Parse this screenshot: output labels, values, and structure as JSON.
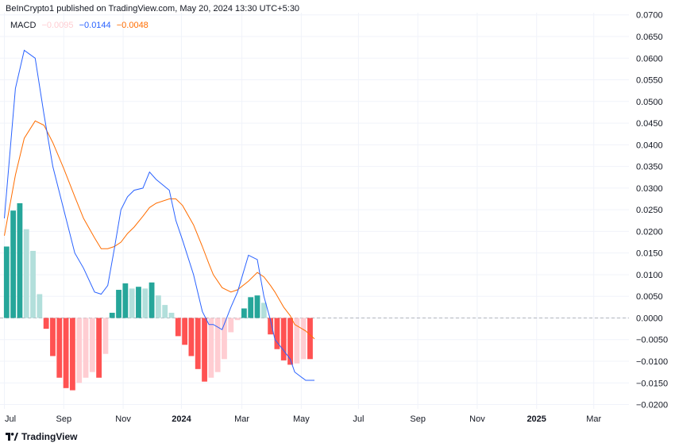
{
  "header": {
    "publisher": "BeInCrypto1 published on TradingView.com, May 20, 2024 13:30 UTC+5:30"
  },
  "legend": {
    "name": "MACD",
    "histogram_value": "−0.0095",
    "macd_value": "−0.0144",
    "signal_value": "−0.0048"
  },
  "footer": {
    "brand": "TradingView"
  },
  "colors": {
    "macd_line": "#2962ff",
    "signal_line": "#ff6d00",
    "hist_pos_strong": "#26a69a",
    "hist_pos_weak": "#b2dfdb",
    "hist_neg_strong": "#ff5252",
    "hist_neg_weak": "#ffcdd2",
    "grid": "#f0f3fa",
    "zero_line": "#b2b5be"
  },
  "chart_data": {
    "type": "line",
    "title": "MACD",
    "xlabel": "",
    "ylabel": "",
    "ylim": [
      -0.021,
      0.0705
    ],
    "xlim_days": [
      -2,
      284
    ],
    "start_date": "2023-07-01",
    "y_ticks": [
      "0.0700",
      "0.0650",
      "0.0600",
      "0.0550",
      "0.0500",
      "0.0450",
      "0.0400",
      "0.0350",
      "0.0300",
      "0.0250",
      "0.0200",
      "0.0150",
      "0.0100",
      "0.0050",
      "0.0000",
      "−0.0050",
      "−0.0100",
      "−0.0150",
      "−0.0200"
    ],
    "x_ticks": [
      {
        "label": "Jul",
        "day": 0,
        "bold": false
      },
      {
        "label": "Sep",
        "day": 27,
        "bold": false
      },
      {
        "label": "Nov",
        "day": 54,
        "bold": false
      },
      {
        "label": "2024",
        "day": 80.5,
        "bold": true
      },
      {
        "label": "Mar",
        "day": 108,
        "bold": false
      },
      {
        "label": "May",
        "day": 135,
        "bold": false
      },
      {
        "label": "Jul",
        "day": 161,
        "bold": false
      },
      {
        "label": "Sep",
        "day": 188,
        "bold": false
      },
      {
        "label": "Nov",
        "day": 215,
        "bold": false
      },
      {
        "label": "2025",
        "day": 242,
        "bold": true
      },
      {
        "label": "Mar",
        "day": 268,
        "bold": false
      }
    ],
    "series": [
      {
        "name": "MACD",
        "days": [
          0,
          5,
          9,
          14,
          18,
          22,
          27,
          32,
          36,
          41,
          44,
          47,
          50,
          53,
          56,
          59,
          63,
          66,
          69,
          75,
          78,
          81,
          86,
          90,
          93,
          95,
          99,
          103,
          106,
          111,
          115,
          118,
          121,
          123,
          127,
          130,
          132,
          137,
          141
        ],
        "values": [
          0.023,
          0.053,
          0.0618,
          0.06,
          0.047,
          0.035,
          0.025,
          0.015,
          0.0115,
          0.006,
          0.0055,
          0.0075,
          0.016,
          0.025,
          0.028,
          0.0295,
          0.03,
          0.0337,
          0.032,
          0.0295,
          0.0225,
          0.018,
          0.01,
          0.0015,
          -0.0015,
          -0.0015,
          -0.0027,
          0.0025,
          0.006,
          0.0145,
          0.0135,
          0.005,
          -0.0005,
          -0.005,
          -0.0075,
          -0.0095,
          -0.0125,
          -0.0144,
          -0.0144
        ]
      },
      {
        "name": "Signal",
        "days": [
          0,
          5,
          9,
          14,
          18,
          22,
          27,
          32,
          36,
          41,
          44,
          47,
          50,
          53,
          56,
          59,
          63,
          66,
          69,
          75,
          78,
          81,
          86,
          90,
          93,
          95,
          99,
          103,
          106,
          111,
          115,
          118,
          121,
          123,
          127,
          130,
          132,
          137,
          141
        ],
        "values": [
          0.019,
          0.033,
          0.0415,
          0.0455,
          0.0445,
          0.0405,
          0.0345,
          0.028,
          0.023,
          0.0185,
          0.016,
          0.016,
          0.0165,
          0.0175,
          0.0195,
          0.021,
          0.0235,
          0.0255,
          0.0265,
          0.0275,
          0.0275,
          0.026,
          0.0215,
          0.0165,
          0.0125,
          0.01,
          0.007,
          0.006,
          0.0065,
          0.0085,
          0.0105,
          0.0095,
          0.0075,
          0.006,
          0.0025,
          0.0005,
          -0.0015,
          -0.003,
          -0.0048
        ]
      }
    ],
    "histogram": [
      {
        "day": 1,
        "value": 0.0165
      },
      {
        "day": 4,
        "value": 0.0248
      },
      {
        "day": 7,
        "value": 0.0265
      },
      {
        "day": 10,
        "value": 0.0205
      },
      {
        "day": 13,
        "value": 0.0155
      },
      {
        "day": 16,
        "value": 0.0055
      },
      {
        "day": 19,
        "value": -0.0025
      },
      {
        "day": 22,
        "value": -0.0088
      },
      {
        "day": 25,
        "value": -0.0138
      },
      {
        "day": 28,
        "value": -0.0162
      },
      {
        "day": 31,
        "value": -0.0167
      },
      {
        "day": 34,
        "value": -0.015
      },
      {
        "day": 37,
        "value": -0.0138
      },
      {
        "day": 40,
        "value": -0.0125
      },
      {
        "day": 43,
        "value": -0.0138
      },
      {
        "day": 46,
        "value": -0.0083
      },
      {
        "day": 49,
        "value": 0.0012
      },
      {
        "day": 52,
        "value": 0.0065
      },
      {
        "day": 55,
        "value": 0.008
      },
      {
        "day": 58,
        "value": 0.0068
      },
      {
        "day": 61,
        "value": 0.0072
      },
      {
        "day": 64,
        "value": 0.0068
      },
      {
        "day": 67,
        "value": 0.0082
      },
      {
        "day": 70,
        "value": 0.0052
      },
      {
        "day": 73,
        "value": 0.003
      },
      {
        "day": 76,
        "value": 0.0012
      },
      {
        "day": 79,
        "value": -0.0042
      },
      {
        "day": 82,
        "value": -0.0062
      },
      {
        "day": 85,
        "value": -0.0088
      },
      {
        "day": 88,
        "value": -0.0118
      },
      {
        "day": 91,
        "value": -0.0147
      },
      {
        "day": 94,
        "value": -0.0138
      },
      {
        "day": 97,
        "value": -0.0125
      },
      {
        "day": 100,
        "value": -0.0095
      },
      {
        "day": 103,
        "value": -0.0033
      },
      {
        "day": 106,
        "value": -0.0005
      },
      {
        "day": 109,
        "value": 0.0022
      },
      {
        "day": 112,
        "value": 0.0048
      },
      {
        "day": 115,
        "value": 0.0052
      },
      {
        "day": 118,
        "value": 0.0035
      },
      {
        "day": 121,
        "value": -0.0038
      },
      {
        "day": 124,
        "value": -0.0072
      },
      {
        "day": 127,
        "value": -0.0098
      },
      {
        "day": 130,
        "value": -0.0108
      },
      {
        "day": 133,
        "value": -0.0105
      },
      {
        "day": 136,
        "value": -0.0095
      },
      {
        "day": 139,
        "value": -0.0095
      }
    ]
  }
}
